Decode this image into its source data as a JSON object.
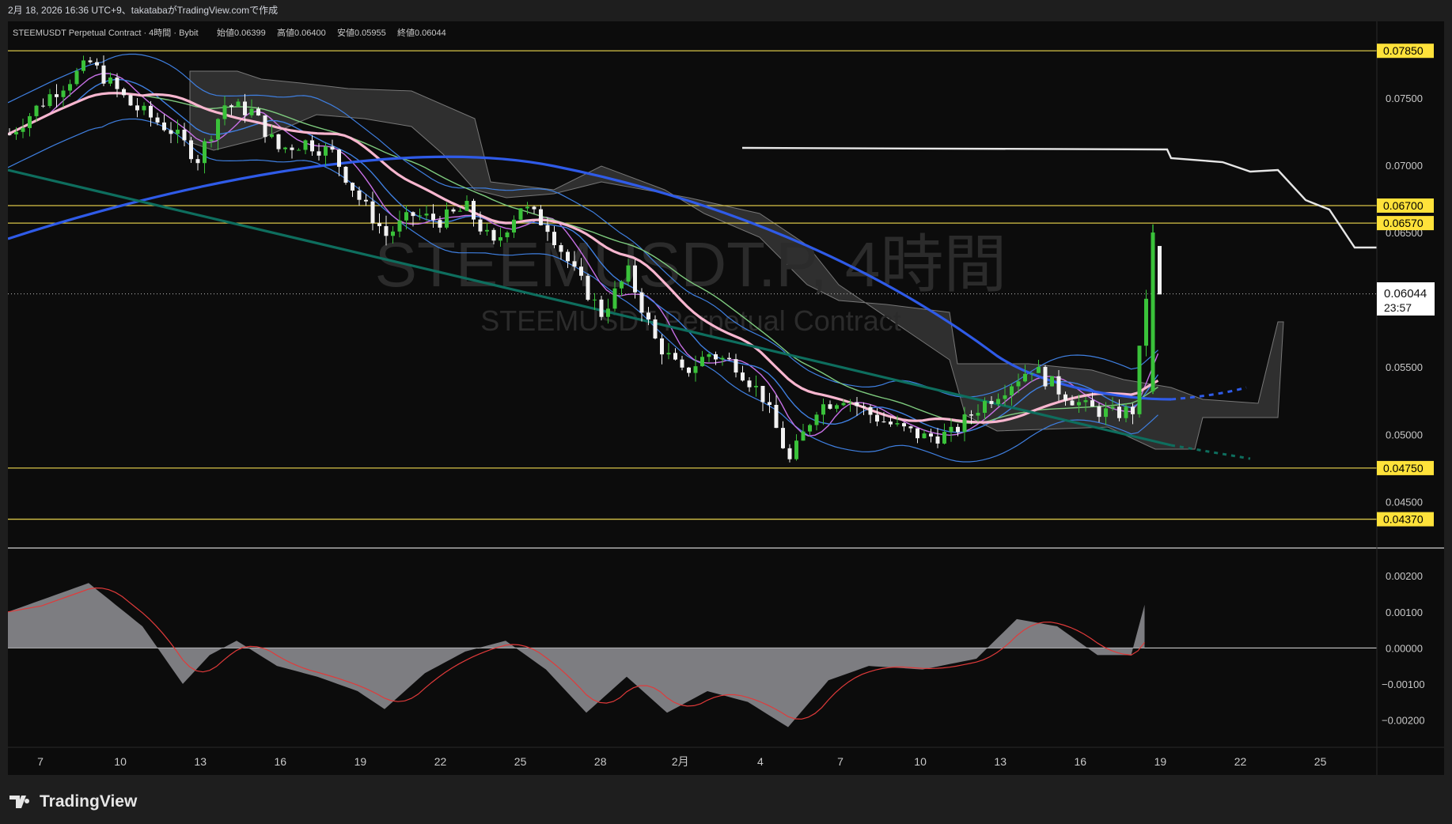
{
  "header": {
    "caption": "2月 18, 2026 16:36 UTC+9、takatabaがTradingView.comで作成"
  },
  "legend": {
    "symbol_line": "STEEMUSDT Perpetual Contract · 4時間 · Bybit",
    "ohlc": [
      {
        "label": "始値",
        "value": "0.06399"
      },
      {
        "label": "高値",
        "value": "0.06400"
      },
      {
        "label": "安値",
        "value": "0.05955"
      },
      {
        "label": "終値",
        "value": "0.06044"
      }
    ]
  },
  "watermark": {
    "title": "STEEMUSDT.P, 4時間",
    "subtitle": "STEEMUSDT Perpetual Contract"
  },
  "footer": {
    "brand": "TradingView"
  },
  "colors": {
    "background": "#0c0c0c",
    "up_candle": "#3ac23a",
    "down_candle": "#f2f2f2",
    "level_line": "#d8c447",
    "label_bg": "#ffe23a",
    "ema_blue": "#2f5be8",
    "sma_pink": "#f8b6cf",
    "trend_teal": "#0e6e5e",
    "bb_blue": "#3f7fe0",
    "green_ma": "#7ecb7e",
    "purple_ma": "#c770e6",
    "macd_hist": "#8a8a8e",
    "macd_signal": "#e03a3a"
  },
  "chart_data": {
    "type": "candlestick",
    "symbol": "STEEMUSDT.P",
    "timeframe": "4時間",
    "exchange": "Bybit",
    "x_tick_labels": [
      "7",
      "10",
      "13",
      "16",
      "19",
      "22",
      "25",
      "28",
      "2月",
      "4",
      "7",
      "10",
      "13",
      "16",
      "19",
      "22",
      "25"
    ],
    "y_tick_labels": [
      "0.07500",
      "0.07000",
      "0.06500",
      "0.06000",
      "0.05500",
      "0.05000",
      "0.04500"
    ],
    "price_ylim": [
      0.0425,
      0.0801
    ],
    "horizontal_levels": [
      {
        "price": 0.0785,
        "label": "0.07850"
      },
      {
        "price": 0.067,
        "label": "0.06700"
      },
      {
        "price": 0.0657,
        "label": "0.06570"
      },
      {
        "price": 0.0475,
        "label": "0.04750"
      },
      {
        "price": 0.0437,
        "label": "0.04370"
      }
    ],
    "last_price": {
      "price": 0.06044,
      "label": "0.06044",
      "countdown": "23:57"
    },
    "indicator": {
      "name": "MACD",
      "y_tick_labels": [
        "0.00200",
        "0.00100",
        "0.00000",
        "−0.00100",
        "−0.00200"
      ],
      "ylim": [
        -0.00265,
        0.00262
      ]
    }
  }
}
